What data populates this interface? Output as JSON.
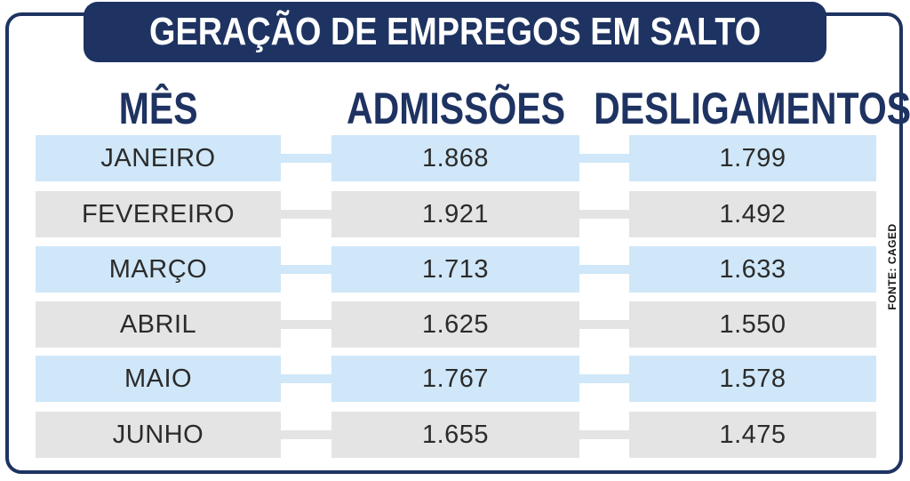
{
  "chart_data": {
    "type": "table",
    "title": "GERAÇÃO DE EMPREGOS EM SALTO",
    "columns": [
      "MÊS",
      "ADMISSÕES",
      "DESLIGAMENTOS"
    ],
    "rows": [
      {
        "month": "JANEIRO",
        "admissions": "1.868",
        "dismissals": "1.799"
      },
      {
        "month": "FEVEREIRO",
        "admissions": "1.921",
        "dismissals": "1.492"
      },
      {
        "month": "MARÇO",
        "admissions": "1.713",
        "dismissals": "1.633"
      },
      {
        "month": "ABRIL",
        "admissions": "1.625",
        "dismissals": "1.550"
      },
      {
        "month": "MAIO",
        "admissions": "1.767",
        "dismissals": "1.578"
      },
      {
        "month": "JUNHO",
        "admissions": "1.655",
        "dismissals": "1.475"
      }
    ],
    "source": "FONTE: CAGED"
  },
  "colors": {
    "frame": "#1e3361",
    "heading": "#1e3361",
    "row_blue": "#cfe7f8",
    "row_gray": "#e4e4e4"
  }
}
